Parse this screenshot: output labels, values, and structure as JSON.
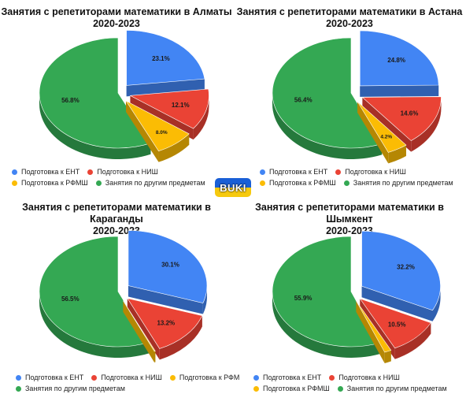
{
  "colors": {
    "ent": "#4285f4",
    "nish": "#ea4335",
    "rfmsh": "#fbbc04",
    "other": "#34a853"
  },
  "logo": {
    "text": "BUKI"
  },
  "chart_data": [
    {
      "type": "pie",
      "title": "Занятия с репетиторами математики в Алматы",
      "subtitle": "2020-2023",
      "slices": [
        {
          "label": "Подготовка к ЕНТ",
          "value": 23.1,
          "color": "#4285f4",
          "display": "23.1%"
        },
        {
          "label": "Подготовка к НИШ",
          "value": 12.1,
          "color": "#ea4335",
          "display": "12.1%"
        },
        {
          "label": "Подготовка к РФМШ",
          "value": 8.0,
          "color": "#fbbc04",
          "display": "8.0%"
        },
        {
          "label": "Занятия по другим предметам",
          "value": 56.8,
          "color": "#34a853",
          "display": "56.8%"
        }
      ],
      "legend": [
        [
          "Подготовка к ЕНТ",
          "Подготовка к НИШ"
        ],
        [
          "Подготовка к РФМШ",
          "Занятия по другим предметам"
        ]
      ],
      "legend_position": "bottom"
    },
    {
      "type": "pie",
      "title": "Занятия с репетиторами математики в Астана",
      "subtitle": "2020-2023",
      "slices": [
        {
          "label": "Подготовка к ЕНТ",
          "value": 24.8,
          "color": "#4285f4",
          "display": "24.8%"
        },
        {
          "label": "Подготовка к НИШ",
          "value": 14.6,
          "color": "#ea4335",
          "display": "14.6%"
        },
        {
          "label": "Подготовка к РФМШ",
          "value": 4.2,
          "color": "#fbbc04",
          "display": "4.2%"
        },
        {
          "label": "Занятия по другим предметам",
          "value": 56.4,
          "color": "#34a853",
          "display": "56.4%"
        }
      ],
      "legend": [
        [
          "Подготовка к ЕНТ",
          "Подготовка к НИШ"
        ],
        [
          "Подготовка к РФМШ",
          "Занятия по другим предметам"
        ]
      ],
      "legend_position": "bottom"
    },
    {
      "type": "pie",
      "title": "Занятия с репетиторами математики в Караганды",
      "subtitle": "2020-2023",
      "slices": [
        {
          "label": "Подготовка к ЕНТ",
          "value": 30.1,
          "color": "#4285f4",
          "display": "30.1%"
        },
        {
          "label": "Подготовка к НИШ",
          "value": 13.2,
          "color": "#ea4335",
          "display": "13.2%"
        },
        {
          "label": "Подготовка к РФМ",
          "value": 0.2,
          "color": "#fbbc04",
          "display": ""
        },
        {
          "label": "Занятия по другим предметам",
          "value": 56.5,
          "color": "#34a853",
          "display": "56.5%"
        }
      ],
      "legend": [
        [
          "Подготовка к ЕНТ",
          "Подготовка к НИШ",
          "Подготовка к РФМ"
        ],
        [
          "Занятия по другим предметам"
        ]
      ],
      "legend_position": "bottom"
    },
    {
      "type": "pie",
      "title": "Занятия с репетиторами математики в Шымкент",
      "subtitle": "2020-2023",
      "slices": [
        {
          "label": "Подготовка к ЕНТ",
          "value": 32.2,
          "color": "#4285f4",
          "display": "32.2%"
        },
        {
          "label": "Подготовка к НИШ",
          "value": 10.5,
          "color": "#ea4335",
          "display": "10.5%"
        },
        {
          "label": "Подготовка к РФМШ",
          "value": 1.4,
          "color": "#fbbc04",
          "display": ""
        },
        {
          "label": "Занятия по другим предметам",
          "value": 55.9,
          "color": "#34a853",
          "display": "55.9%"
        }
      ],
      "legend": [
        [
          "Подготовка к ЕНТ",
          "Подготовка к НИШ"
        ],
        [
          "Подготовка к РФМШ",
          "Занятия по другим предметам"
        ]
      ],
      "legend_position": "bottom"
    }
  ]
}
